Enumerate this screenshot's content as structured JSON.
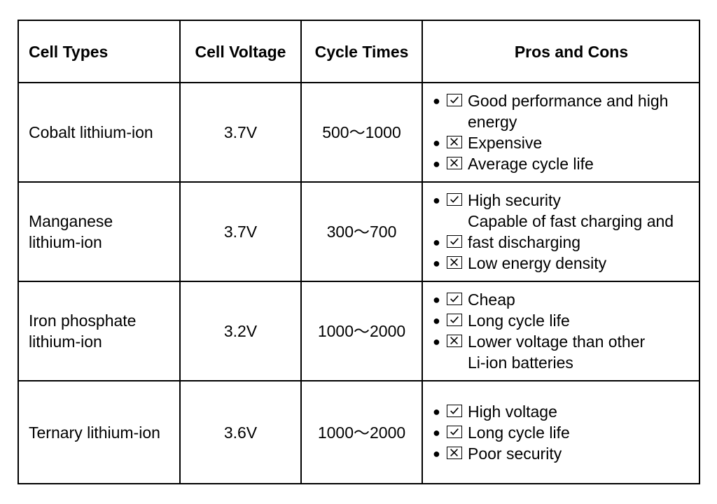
{
  "table": {
    "headers": {
      "cell_types": "Cell Types",
      "cell_voltage": "Cell Voltage",
      "cycle_times": "Cycle Times",
      "pros_and_cons": "Pros and Cons"
    },
    "rows": [
      {
        "name": "Cobalt lithium-ion",
        "voltage": "3.7V",
        "cycles": "500～1000",
        "items": [
          {
            "mark": "check",
            "lines": [
              "Good performance and high",
              "energy"
            ]
          },
          {
            "mark": "cross",
            "lines": [
              "Expensive"
            ]
          },
          {
            "mark": "cross",
            "lines": [
              "Average cycle life"
            ]
          }
        ]
      },
      {
        "name": "Manganese lithium-ion",
        "voltage": "3.7V",
        "cycles": "300～700",
        "items": [
          {
            "mark": "check",
            "lines": [
              "High security"
            ]
          },
          {
            "mark": "none",
            "lines": [
              "Capable of fast charging and"
            ]
          },
          {
            "mark": "check",
            "lines": [
              "fast discharging"
            ]
          },
          {
            "mark": "cross",
            "lines": [
              "Low energy density"
            ]
          }
        ]
      },
      {
        "name": "Iron phosphate lithium-ion",
        "voltage": "3.2V",
        "cycles": "1000～2000",
        "items": [
          {
            "mark": "check",
            "lines": [
              "Cheap"
            ]
          },
          {
            "mark": "check",
            "lines": [
              "Long cycle life"
            ]
          },
          {
            "mark": "cross",
            "lines": [
              "Lower voltage than other",
              "Li-ion batteries"
            ]
          }
        ]
      },
      {
        "name": "Ternary lithium-ion",
        "voltage": "3.6V",
        "cycles": "1000～2000",
        "items": [
          {
            "mark": "check",
            "lines": [
              "High voltage"
            ]
          },
          {
            "mark": "check",
            "lines": [
              "Long cycle life"
            ]
          },
          {
            "mark": "cross",
            "lines": [
              "Poor security"
            ]
          }
        ]
      }
    ]
  }
}
